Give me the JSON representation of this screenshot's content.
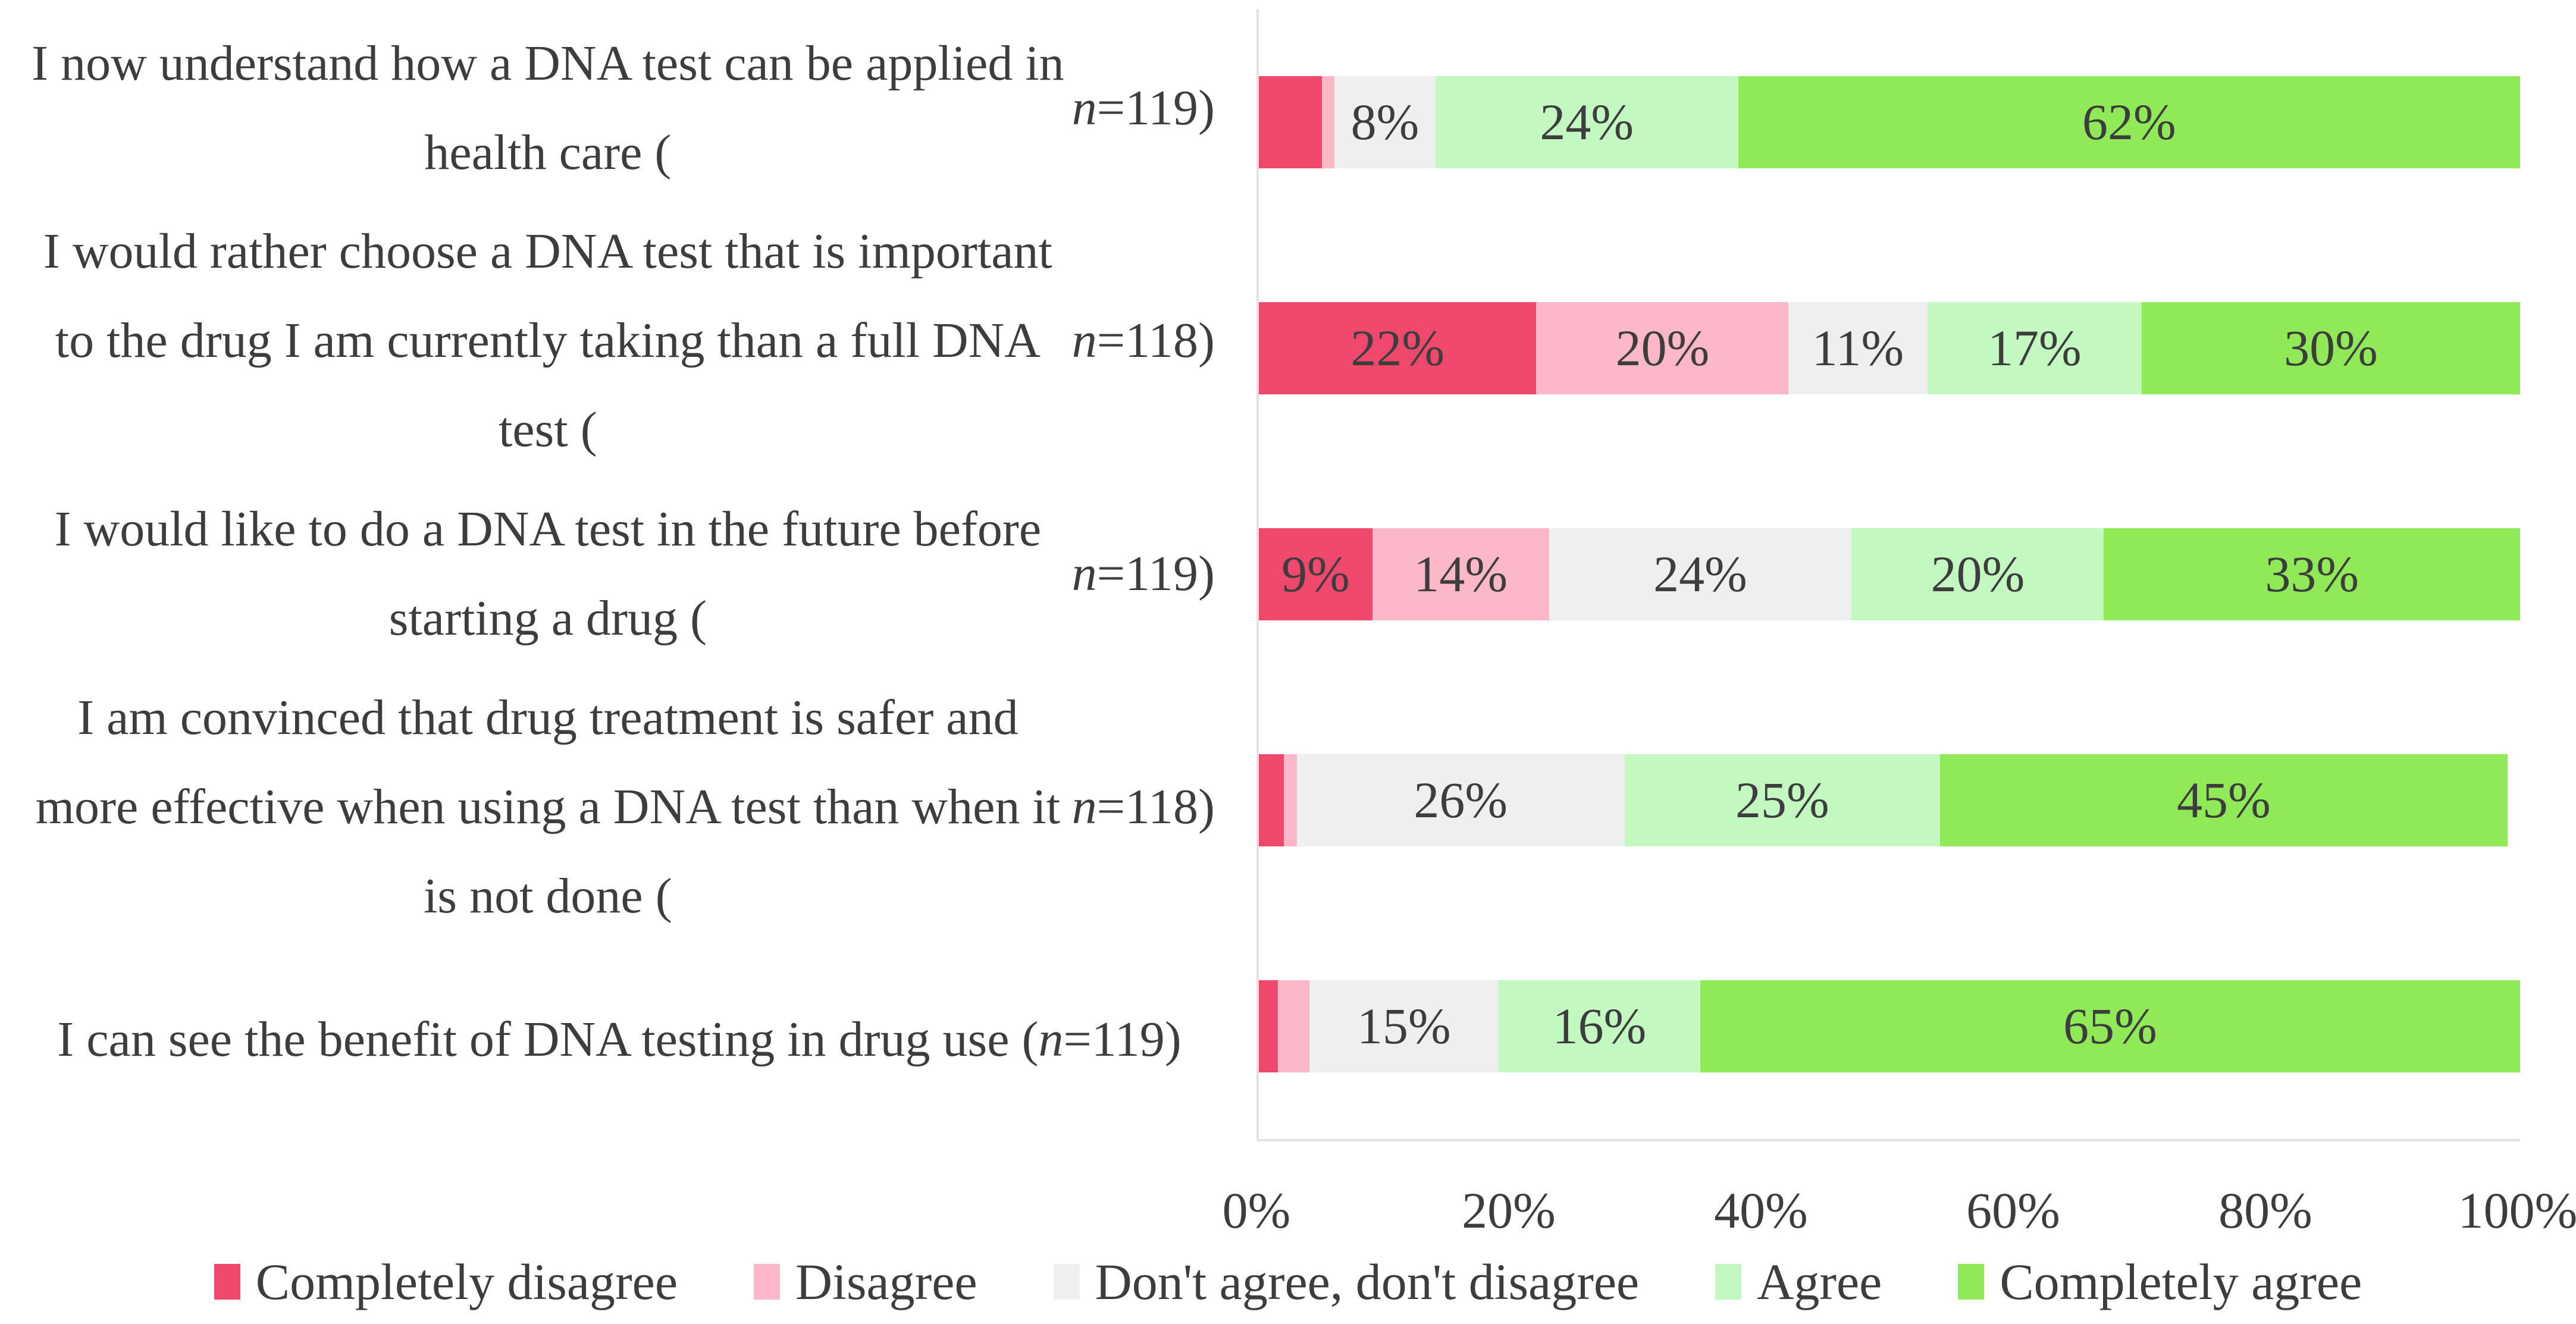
{
  "figure": {
    "background": "#ffffff",
    "text_color": "#3d3d3d",
    "axis_line_color": "#e3e3e3"
  },
  "chart_data": {
    "type": "bar",
    "subtype": "horizontal_stacked",
    "stacked": true,
    "grid": false,
    "title": "",
    "xlabel": "",
    "ylabel": "",
    "x_axis": {
      "range": [
        0,
        100
      ],
      "tick_labels": [
        "0%",
        "20%",
        "40%",
        "60%",
        "80%",
        "100%"
      ]
    },
    "legend": {
      "position": "bottom",
      "entries": [
        "Completely disagree",
        "Disagree",
        "Don't agree, don't disagree",
        "Agree",
        "Completely agree"
      ]
    },
    "categories": [
      "I now understand how a DNA test can be applied in health care (n=119)",
      "I would rather choose a DNA test that is important to the drug I am currently taking than a full DNA test (n=118)",
      "I would like to do a DNA test in the future before starting a drug (n=119)",
      "I am convinced that drug treatment is safer and more effective when using a DNA test than when it is not done (n=118)",
      "I can see the benefit of DNA testing in drug use (n=119)"
    ],
    "series": [
      {
        "name": "Completely disagree",
        "color": "#f0486c",
        "values": [
          5,
          22,
          9,
          2,
          1.5
        ],
        "labels": [
          "",
          "22%",
          "9%",
          "",
          ""
        ]
      },
      {
        "name": "Disagree",
        "color": "#fcb8c9",
        "values": [
          1,
          20,
          14,
          1,
          2.5
        ],
        "labels": [
          "",
          "20%",
          "14%",
          "",
          ""
        ]
      },
      {
        "name": "Don't agree, don't disagree",
        "color": "#f0efef",
        "values": [
          8,
          11,
          24,
          26,
          15
        ],
        "labels": [
          "8%",
          "11%",
          "24%",
          "26%",
          "15%"
        ]
      },
      {
        "name": "Agree",
        "color": "#c3f8c1",
        "values": [
          24,
          17,
          20,
          25,
          16
        ],
        "labels": [
          "24%",
          "17%",
          "20%",
          "25%",
          "16%"
        ]
      },
      {
        "name": "Completely agree",
        "color": "#90e956",
        "values": [
          62,
          30,
          33,
          45,
          65
        ],
        "labels": [
          "62%",
          "30%",
          "33%",
          "45%",
          "65%"
        ]
      }
    ]
  }
}
